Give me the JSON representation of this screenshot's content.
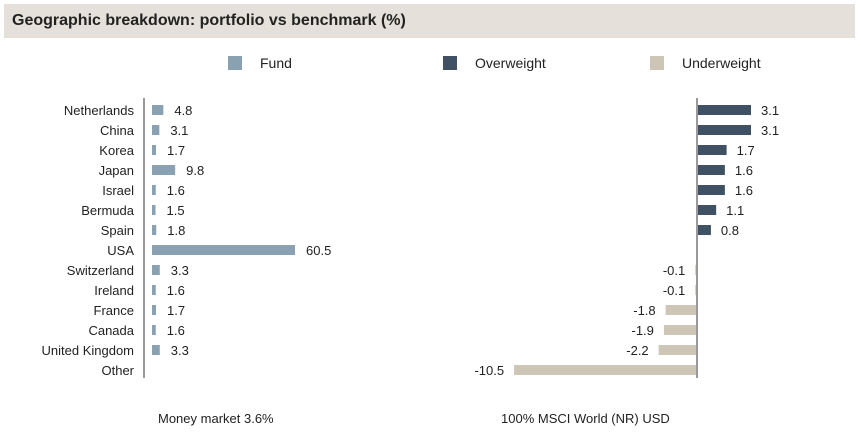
{
  "title": "Geographic breakdown: portfolio vs benchmark (%)",
  "colors": {
    "fund": "#8aa1b1",
    "overweight": "#3f5163",
    "underweight": "#cdc5b6",
    "axis": "#9a9a9a",
    "title_bg": "#e5e1da"
  },
  "legend": [
    {
      "label": "Fund",
      "color": "#8aa1b1"
    },
    {
      "label": "Overweight",
      "color": "#3f5163"
    },
    {
      "label": "Underweight",
      "color": "#cdc5b6"
    }
  ],
  "footer": {
    "left": "Money market 3.6%",
    "right": "100% MSCI World (NR) USD"
  },
  "chart_data": [
    {
      "type": "bar",
      "orientation": "horizontal",
      "title": "",
      "categories": [
        "Netherlands",
        "China",
        "Korea",
        "Japan",
        "Israel",
        "Bermuda",
        "Spain",
        "USA",
        "Switzerland",
        "Ireland",
        "France",
        "Canada",
        "United Kingdom",
        "Other"
      ],
      "series": [
        {
          "name": "Fund",
          "values": [
            4.8,
            3.1,
            1.7,
            9.8,
            1.6,
            1.5,
            1.8,
            60.5,
            3.3,
            1.6,
            1.7,
            1.6,
            3.3,
            null
          ]
        }
      ]
    },
    {
      "type": "bar",
      "orientation": "horizontal",
      "title": "",
      "categories": [
        "Netherlands",
        "China",
        "Korea",
        "Japan",
        "Israel",
        "Bermuda",
        "Spain",
        "USA",
        "Switzerland",
        "Ireland",
        "France",
        "Canada",
        "United Kingdom",
        "Other"
      ],
      "series": [
        {
          "values": [
            3.1,
            3.1,
            1.7,
            1.6,
            1.6,
            1.1,
            0.8,
            null,
            -0.1,
            -0.1,
            -1.8,
            -1.9,
            -2.2,
            -10.5
          ]
        }
      ]
    }
  ]
}
